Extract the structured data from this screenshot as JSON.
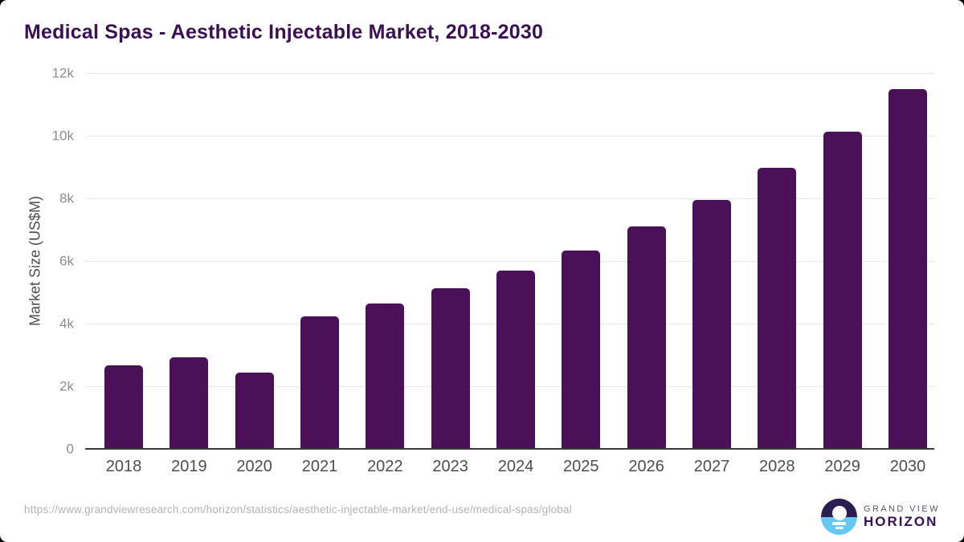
{
  "title": "Medical Spas - Aesthetic Injectable Market, 2018-2030",
  "chart_data": {
    "type": "bar",
    "title": "Medical Spas - Aesthetic Injectable Market, 2018-2030",
    "categories": [
      "2018",
      "2019",
      "2020",
      "2021",
      "2022",
      "2023",
      "2024",
      "2025",
      "2026",
      "2027",
      "2028",
      "2029",
      "2030"
    ],
    "values": [
      2660,
      2920,
      2430,
      4230,
      4640,
      5140,
      5700,
      6340,
      7100,
      7960,
      8970,
      10120,
      11480
    ],
    "xlabel": "",
    "ylabel": "Market Size (US$M)",
    "ylim": [
      0,
      12000
    ],
    "yticks": [
      0,
      2000,
      4000,
      6000,
      8000,
      10000,
      12000
    ],
    "ytick_labels": [
      "0",
      "2k",
      "4k",
      "6k",
      "8k",
      "10k",
      "12k"
    ],
    "grid": true,
    "legend": false,
    "units": "US$M"
  },
  "footer": {
    "source_url": "https://www.grandviewresearch.com/horizon/statistics/aesthetic-injectable-market/end-use/medical-spas/global",
    "logo": {
      "line1": "GRAND VIEW",
      "line2": "HORIZON"
    }
  },
  "colors": {
    "bar": "#4a1158",
    "title": "#3b1053",
    "gridline": "#e8e8e8",
    "axis_line": "#3a3a3a",
    "y_tick": "#8c8c8c",
    "x_tick": "#4d4d4d",
    "y_axis_title": "#4d4d4d",
    "url_text": "#b3b3b3",
    "logo_top": "#2b1d4f",
    "logo_bottom": "#66c7f1",
    "logo_line1": "#5a5565",
    "logo_line2": "#3b1053"
  }
}
